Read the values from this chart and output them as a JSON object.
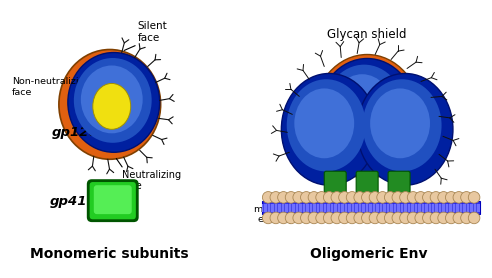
{
  "title_left": "Monomeric subunits",
  "title_right": "Oligomeric Env",
  "label_gp120": "gp120",
  "label_gp41": "gp41",
  "label_silent": "Silent\nface",
  "label_non_neutralizing": "Non-neutralizing\nface",
  "label_neutralizing": "Neutralizing\nface",
  "label_glycan": "Glycan shield",
  "label_virus": "Virus\nmembrane\nenvelope",
  "color_orange": "#E06010",
  "color_blue_dark": "#0020A0",
  "color_blue_mid": "#2050C0",
  "color_blue_light": "#4070D8",
  "color_yellow": "#F0E010",
  "color_green_dark": "#005500",
  "color_green_mid": "#228B22",
  "color_green_bright": "#22CC22",
  "color_membrane_blue": "#3030EE",
  "color_membrane_purple": "#7070FF",
  "color_bead": "#E8C8A0",
  "bg_color": "#FFFFFF"
}
